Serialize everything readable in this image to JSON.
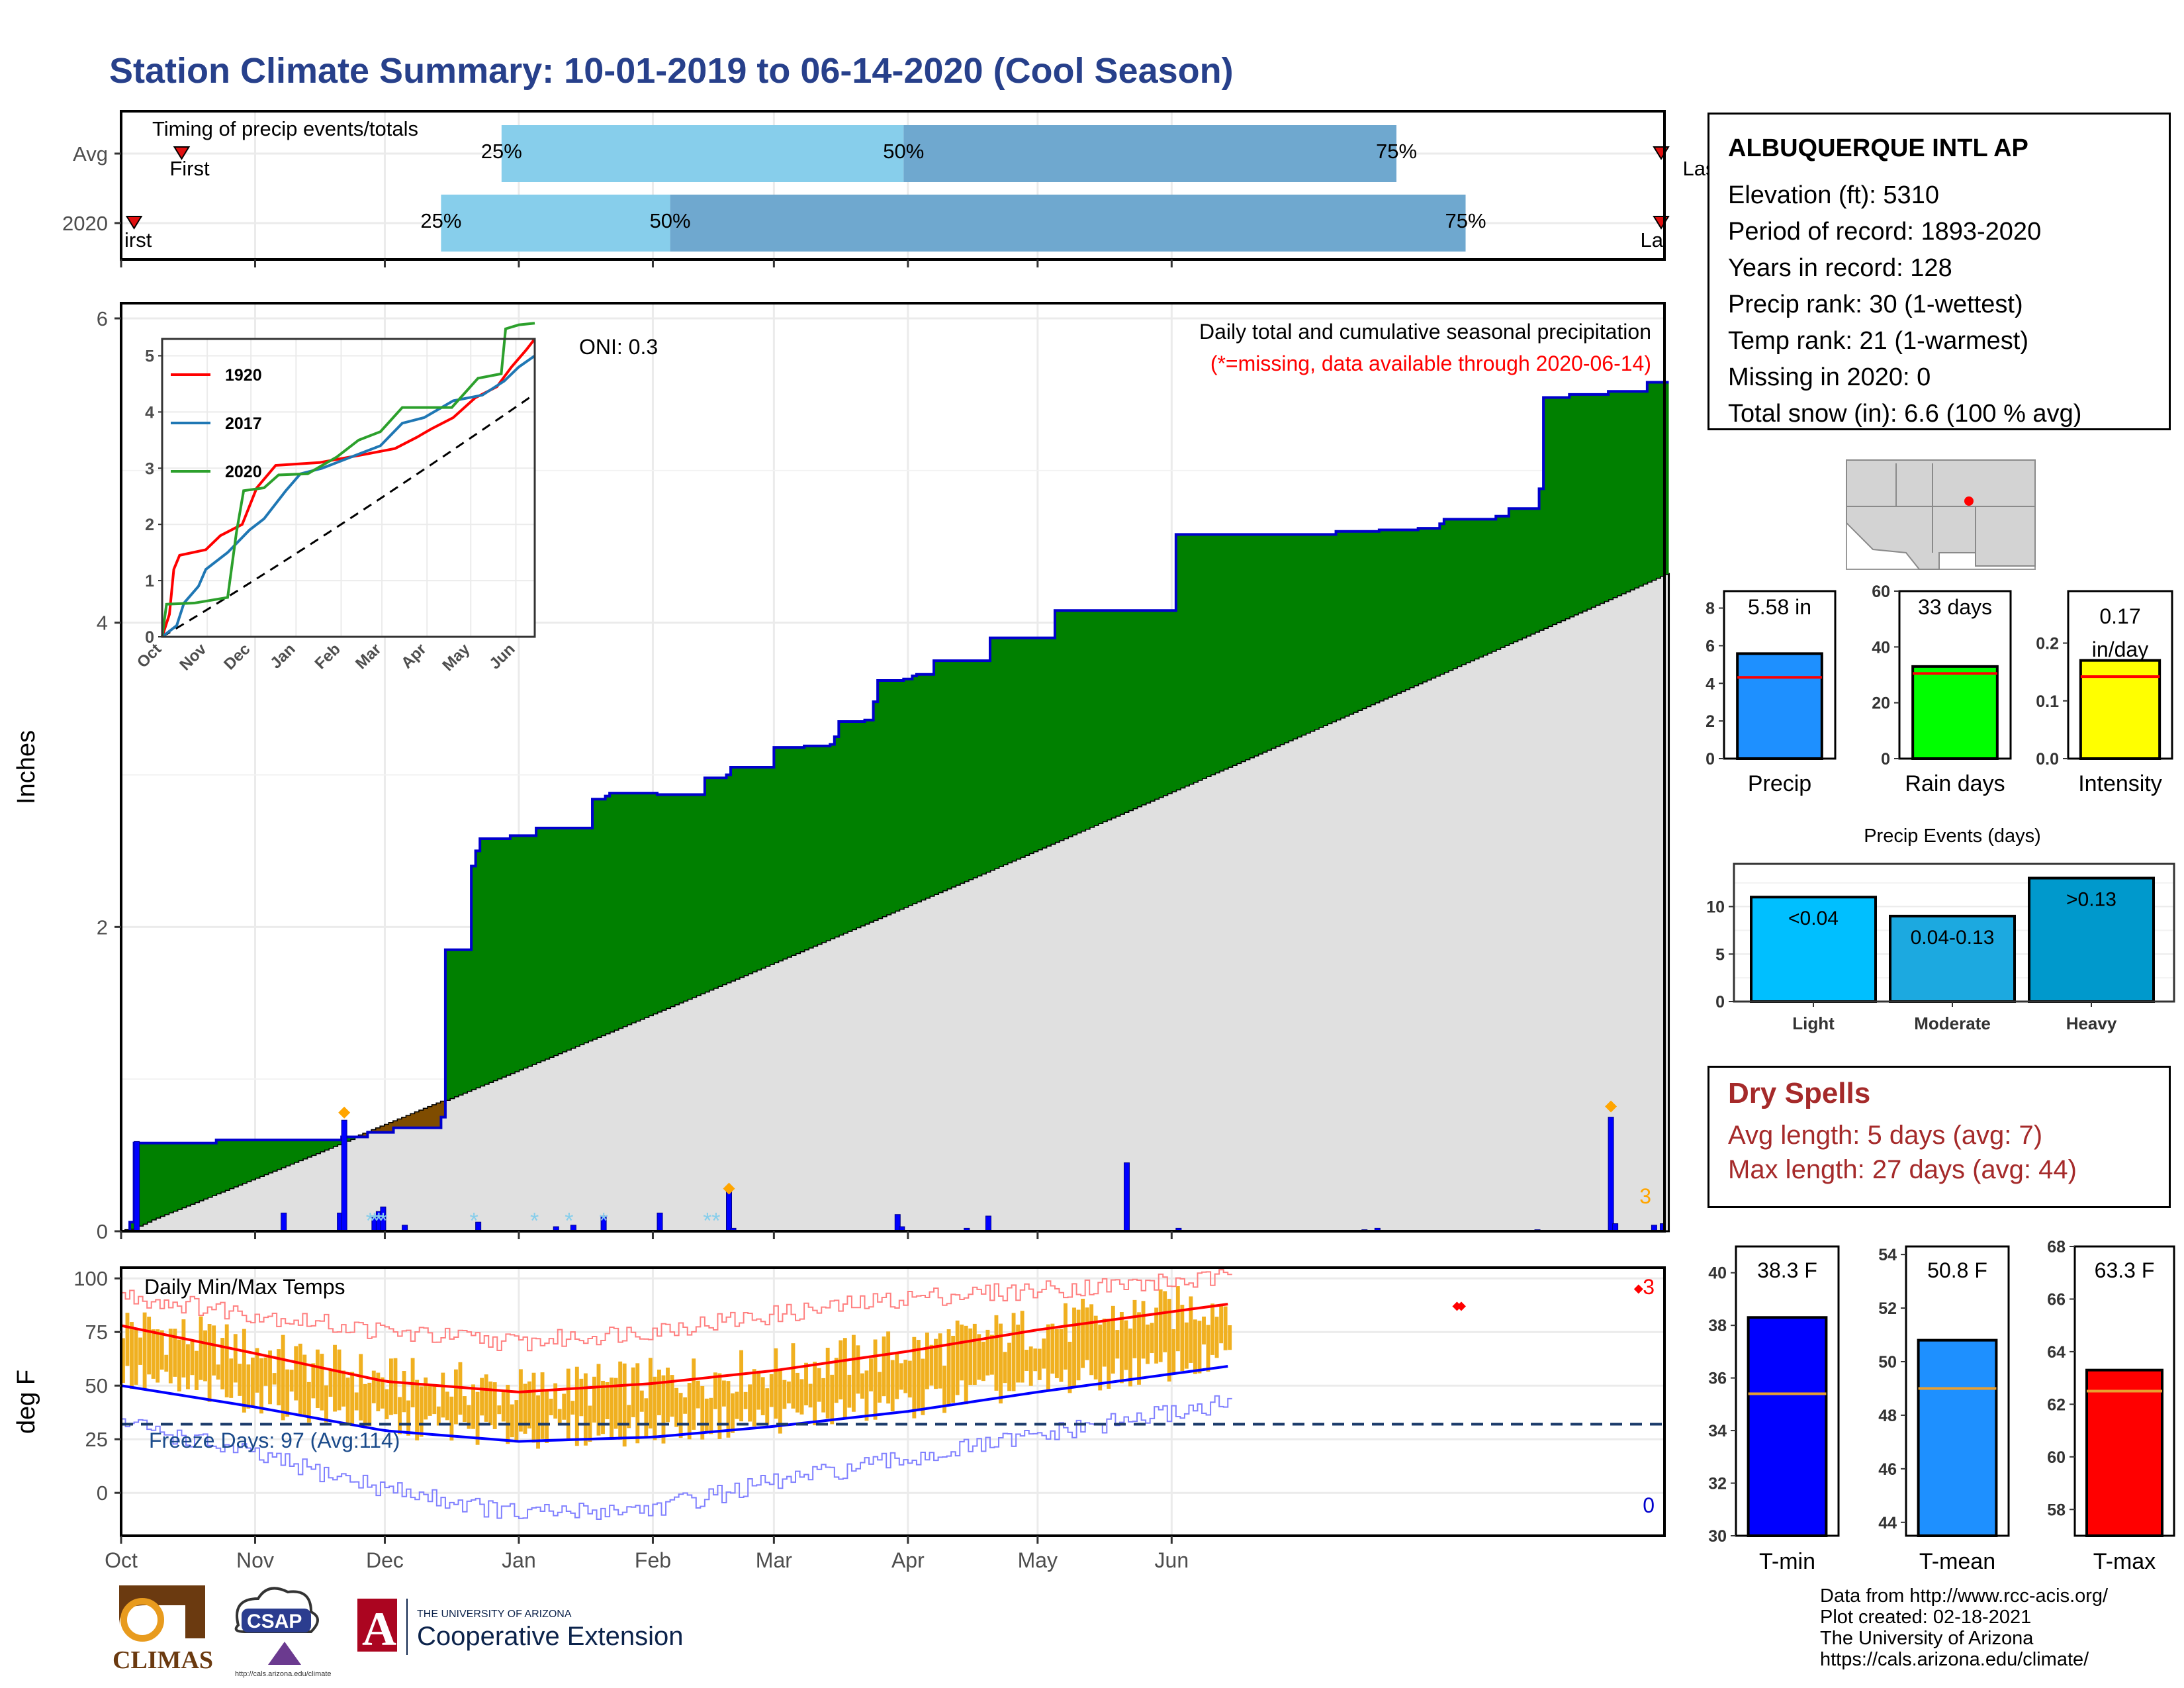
{
  "page_title": "Station Climate Summary: 10-01-2019 to 06-14-2020 (Cool Season)",
  "station": {
    "name": "ALBUQUERQUE INTL AP",
    "lines": [
      "Elevation (ft): 5310",
      "Period of record: 1893-2020",
      "Years in record: 128",
      "Precip rank: 30 (1-wettest)",
      "Temp rank: 21 (1-warmest)",
      "Missing in 2020: 0",
      "Total snow (in): 6.6 (100 % avg)"
    ]
  },
  "dry_spells": {
    "title": "Dry Spells",
    "avg_length": "Avg length: 5 days (avg: 7)",
    "max_length": "Max length: 27 days (avg: 44)"
  },
  "credits": [
    "Data from http://www.rcc-acis.org/",
    "Plot created: 02-18-2021",
    "The University of Arizona",
    "https://cals.arizona.edu/climate/"
  ],
  "logos": {
    "climas": "CLIMAS",
    "csap": "CSAP",
    "csap_url": "http://cals.arizona.edu/climate",
    "ua_small": "THE UNIVERSITY OF ARIZONA",
    "ua_large": "Cooperative Extension",
    "ua_mark": "A"
  },
  "colors": {
    "title": "#27408b",
    "cumulative_fill": "#008000",
    "deficit_fill": "#7f4c00",
    "normal_fill": "#e0e0e0",
    "daily_bar": "#0000ff",
    "temp_bar": "#f0b020",
    "tmax_line": "#ff0000",
    "tmin_line": "#0000ff",
    "dry_spell_text": "#a52a2a"
  },
  "chart_data": [
    {
      "id": "timing",
      "type": "bar",
      "title": "Timing of precip events/totals",
      "categories": [
        "Avg",
        "2020"
      ],
      "x_range": [
        0,
        256
      ],
      "series": [
        {
          "category": "Avg",
          "first": 14,
          "p25": 88,
          "p50": 181,
          "p75": 295,
          "last": 368
        },
        {
          "category": "2020",
          "first": 3,
          "p25": 74,
          "p50": 127,
          "p75": 311,
          "last": 403
        }
      ],
      "labels": {
        "first": "First",
        "last": "Last",
        "p25": "25%",
        "p50": "50%",
        "p75": "75%"
      },
      "first_label_2020": "irst",
      "last_label_2020": "La"
    },
    {
      "id": "precip",
      "type": "area",
      "title": "Daily total and cumulative seasonal precipitation",
      "subtitle": "(*=missing, data available through 2020-06-14)",
      "annotation": "ONI: 0.3",
      "corner_count": "3",
      "ylabel": "Inches",
      "ylim": [
        0,
        6.1
      ],
      "yticks": [
        0,
        2,
        4,
        6
      ],
      "x_months": [
        "Oct",
        "Nov",
        "Dec",
        "Jan",
        "Feb",
        "Mar",
        "Apr",
        "May",
        "Jun"
      ],
      "month_start_days": [
        0,
        31,
        61,
        92,
        123,
        152,
        183,
        213,
        244
      ],
      "n_days": 258,
      "cumulative_2020": [
        [
          0,
          0
        ],
        [
          2,
          0.06
        ],
        [
          3,
          0.58
        ],
        [
          21,
          0.58
        ],
        [
          22,
          0.6
        ],
        [
          50,
          0.6
        ],
        [
          51,
          0.62
        ],
        [
          56,
          0.62
        ],
        [
          57,
          0.65
        ],
        [
          62,
          0.65
        ],
        [
          63,
          0.68
        ],
        [
          73,
          0.68
        ],
        [
          74,
          0.75
        ],
        [
          75,
          1.85
        ],
        [
          80,
          1.85
        ],
        [
          81,
          2.4
        ],
        [
          82,
          2.5
        ],
        [
          83,
          2.58
        ],
        [
          88,
          2.58
        ],
        [
          90,
          2.6
        ],
        [
          95,
          2.6
        ],
        [
          96,
          2.65
        ],
        [
          107,
          2.65
        ],
        [
          109,
          2.84
        ],
        [
          112,
          2.86
        ],
        [
          113,
          2.88
        ],
        [
          123,
          2.88
        ],
        [
          124,
          2.87
        ],
        [
          134,
          2.87
        ],
        [
          135,
          2.98
        ],
        [
          140,
          3.0
        ],
        [
          141,
          3.05
        ],
        [
          150,
          3.05
        ],
        [
          151,
          3.18
        ],
        [
          157,
          3.18
        ],
        [
          158,
          3.19
        ],
        [
          164,
          3.2
        ],
        [
          165,
          3.25
        ],
        [
          166,
          3.35
        ],
        [
          172,
          3.36
        ],
        [
          174,
          3.48
        ],
        [
          175,
          3.62
        ],
        [
          180,
          3.62
        ],
        [
          181,
          3.63
        ],
        [
          183,
          3.65
        ],
        [
          184,
          3.66
        ],
        [
          187,
          3.66
        ],
        [
          188,
          3.75
        ],
        [
          200,
          3.75
        ],
        [
          201,
          3.9
        ],
        [
          215,
          3.9
        ],
        [
          216,
          4.08
        ],
        [
          220,
          4.08
        ],
        [
          222,
          4.08
        ],
        [
          243,
          4.08
        ],
        [
          244,
          4.58
        ],
        [
          280,
          4.58
        ],
        [
          281,
          4.6
        ],
        [
          290,
          4.6
        ],
        [
          291,
          4.61
        ],
        [
          300,
          4.62
        ],
        [
          305,
          4.65
        ],
        [
          306,
          4.68
        ],
        [
          318,
          4.7
        ],
        [
          321,
          4.75
        ],
        [
          327,
          4.75
        ],
        [
          328,
          4.88
        ],
        [
          329,
          5.48
        ],
        [
          335,
          5.5
        ],
        [
          343,
          5.5
        ],
        [
          344,
          5.52
        ],
        [
          350,
          5.52
        ],
        [
          353,
          5.58
        ]
      ],
      "normal_cumulative_end": 4.32,
      "deficit_span": [
        21,
        74
      ],
      "daily_bars": [
        [
          3,
          0.59
        ],
        [
          37,
          0.12
        ],
        [
          50,
          0.12
        ],
        [
          51,
          0.73
        ],
        [
          58,
          0.09
        ],
        [
          59,
          0.13
        ],
        [
          60,
          0.16
        ],
        [
          65,
          0.04
        ],
        [
          82,
          0.06
        ],
        [
          100,
          0.03
        ],
        [
          104,
          0.04
        ],
        [
          111,
          0.1
        ],
        [
          124,
          0.12
        ],
        [
          140,
          0.26
        ],
        [
          141,
          0.02
        ],
        [
          179,
          0.11
        ],
        [
          180,
          0.03
        ],
        [
          195,
          0.02
        ],
        [
          200,
          0.1
        ],
        [
          232,
          0.45
        ],
        [
          244,
          0.02
        ],
        [
          287,
          0.01
        ],
        [
          290,
          0.02
        ],
        [
          327,
          0.01
        ],
        [
          344,
          0.75
        ],
        [
          345,
          0.05
        ],
        [
          354,
          0.04
        ],
        [
          356,
          0.05
        ]
      ],
      "diamonds": [
        [
          51,
          0.78
        ],
        [
          140,
          0.28
        ],
        [
          344,
          0.82
        ]
      ],
      "snow_days": [
        57,
        58,
        59,
        60,
        81,
        95,
        103,
        111,
        135,
        137
      ],
      "inset": {
        "type": "line",
        "ylim": [
          0,
          5.3
        ],
        "yticks": [
          0,
          1,
          2,
          3,
          4,
          5
        ],
        "x_months": [
          "Oct",
          "Nov",
          "Dec",
          "Jan",
          "Feb",
          "Mar",
          "Apr",
          "May",
          "Jun"
        ],
        "series": [
          {
            "name": "1920",
            "color": "#ff0000",
            "points": [
              [
                0,
                0
              ],
              [
                5,
                0.4
              ],
              [
                8,
                1.2
              ],
              [
                12,
                1.45
              ],
              [
                30,
                1.55
              ],
              [
                40,
                1.8
              ],
              [
                55,
                2.0
              ],
              [
                65,
                2.65
              ],
              [
                78,
                3.05
              ],
              [
                108,
                3.1
              ],
              [
                140,
                3.25
              ],
              [
                160,
                3.35
              ],
              [
                175,
                3.55
              ],
              [
                185,
                3.7
              ],
              [
                200,
                3.9
              ],
              [
                215,
                4.25
              ],
              [
                230,
                4.45
              ],
              [
                240,
                4.8
              ],
              [
                250,
                5.1
              ],
              [
                256,
                5.3
              ]
            ]
          },
          {
            "name": "2017",
            "color": "#1f77b4",
            "points": [
              [
                0,
                0
              ],
              [
                10,
                0.2
              ],
              [
                15,
                0.6
              ],
              [
                25,
                0.9
              ],
              [
                30,
                1.2
              ],
              [
                45,
                1.5
              ],
              [
                60,
                1.9
              ],
              [
                70,
                2.1
              ],
              [
                85,
                2.6
              ],
              [
                95,
                2.9
              ],
              [
                110,
                3.0
              ],
              [
                130,
                3.2
              ],
              [
                150,
                3.4
              ],
              [
                165,
                3.8
              ],
              [
                180,
                3.9
              ],
              [
                200,
                4.2
              ],
              [
                220,
                4.3
              ],
              [
                235,
                4.55
              ],
              [
                245,
                4.8
              ],
              [
                256,
                5.0
              ]
            ]
          },
          {
            "name": "2020",
            "color": "#2ca02c",
            "points": [
              [
                0,
                0
              ],
              [
                3,
                0.58
              ],
              [
                22,
                0.6
              ],
              [
                45,
                0.7
              ],
              [
                51,
                1.85
              ],
              [
                56,
                2.6
              ],
              [
                70,
                2.65
              ],
              [
                80,
                2.88
              ],
              [
                100,
                2.9
              ],
              [
                110,
                3.05
              ],
              [
                120,
                3.2
              ],
              [
                135,
                3.5
              ],
              [
                150,
                3.65
              ],
              [
                165,
                4.08
              ],
              [
                199,
                4.08
              ],
              [
                217,
                4.6
              ],
              [
                233,
                4.68
              ],
              [
                236,
                5.48
              ],
              [
                245,
                5.55
              ],
              [
                256,
                5.58
              ]
            ]
          }
        ],
        "normal_end": 4.32
      }
    },
    {
      "id": "temps",
      "type": "bar",
      "title": "Daily Min/Max Temps",
      "annotation": "Freeze Days: 97 (Avg:114)",
      "freeze_line": 32,
      "ylabel": "deg F",
      "ylim": [
        -20,
        105
      ],
      "yticks": [
        0,
        25,
        50,
        75,
        100
      ],
      "x_months": [
        "Oct",
        "Nov",
        "Dec",
        "Jan",
        "Feb",
        "Mar",
        "Apr",
        "May",
        "Jun"
      ],
      "corner_count_top": "3",
      "corner_count_bottom": "0",
      "tmax_normal": {
        "start": 78,
        "nov": 65,
        "dec": 52,
        "jan": 47,
        "feb": 51,
        "mar": 57,
        "apr": 66,
        "may": 76,
        "end": 88
      },
      "tmin_normal": {
        "start": 50,
        "nov": 40,
        "dec": 29,
        "jan": 24,
        "feb": 26,
        "mar": 31,
        "apr": 38,
        "may": 47,
        "end": 59
      },
      "record_high": {
        "start": 92,
        "dec": 75,
        "jan": 70,
        "feb": 76,
        "mar": 83,
        "apr": 91,
        "end": 100
      },
      "record_low": {
        "start": 33,
        "dec": 2,
        "jan": -10,
        "feb": -7,
        "mar": 5,
        "apr": 16,
        "end": 42
      },
      "record_highs_set": [
        [
          309,
          87
        ],
        [
          310,
          87
        ],
        [
          351,
          95
        ]
      ]
    },
    {
      "id": "totals",
      "type": "bar",
      "panels": [
        {
          "name": "Precip",
          "value": 5.58,
          "label": "5.58 in",
          "normal": 4.32,
          "ylim": [
            0,
            8.9
          ],
          "yticks": [
            0,
            2,
            4,
            6,
            8
          ],
          "color": "#1e90ff"
        },
        {
          "name": "Rain days",
          "value": 33,
          "label": "33 days",
          "normal": 30.5,
          "ylim": [
            0,
            60
          ],
          "yticks": [
            0,
            20,
            40,
            60
          ],
          "color": "#00ff00"
        },
        {
          "name": "Intensity",
          "value": 0.17,
          "label": "0.17 in/day",
          "normal": 0.142,
          "ylim": [
            0,
            0.29
          ],
          "yticks": [
            0.0,
            0.1,
            0.2
          ],
          "color": "#ffff00"
        }
      ]
    },
    {
      "id": "events",
      "type": "bar",
      "title": "Precip Events (days)",
      "categories": [
        "Light",
        "Moderate",
        "Heavy"
      ],
      "values": [
        11,
        9,
        13
      ],
      "bar_labels": [
        "<0.04",
        "0.04-0.13",
        ">0.13"
      ],
      "colors": [
        "#00bfff",
        "#1ca9e0",
        "#0099cc"
      ],
      "ylim": [
        0,
        14.5
      ],
      "yticks": [
        0,
        5,
        10
      ]
    },
    {
      "id": "temp_totals",
      "type": "bar",
      "panels": [
        {
          "name": "T-min",
          "value": 38.3,
          "label": "38.3 F",
          "normal": 35.4,
          "ylim": [
            30,
            41
          ],
          "yticks": [
            30,
            32,
            34,
            36,
            38,
            40
          ],
          "color": "#0000ff"
        },
        {
          "name": "T-mean",
          "value": 50.8,
          "label": "50.8 F",
          "normal": 49.0,
          "ylim": [
            43.5,
            54.3
          ],
          "yticks": [
            44,
            46,
            48,
            50,
            52,
            54
          ],
          "color": "#1e90ff"
        },
        {
          "name": "T-max",
          "value": 63.3,
          "label": "63.3 F",
          "normal": 62.5,
          "ylim": [
            57,
            68
          ],
          "yticks": [
            58,
            60,
            62,
            64,
            66,
            68
          ],
          "color": "#ff0000"
        }
      ]
    }
  ]
}
